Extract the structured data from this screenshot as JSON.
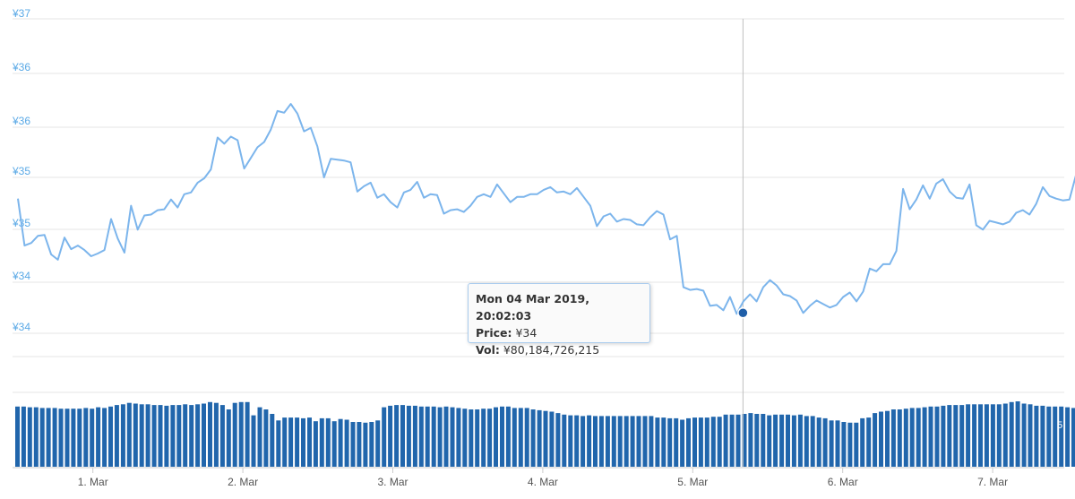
{
  "chart_data": {
    "type": "line",
    "y_tick_labels": [
      "¥37",
      "¥36",
      "¥36",
      "¥35",
      "¥35",
      "¥34",
      "¥34"
    ],
    "x_tick_labels": [
      "1. Mar",
      "2. Mar",
      "3. Mar",
      "4. Mar",
      "5. Mar",
      "6. Mar",
      "7. Mar"
    ],
    "x_range_days": [
      0.0,
      7.5
    ],
    "price_range": [
      33.5,
      37
    ],
    "grid": true,
    "series": [
      {
        "values": [
          35.02,
          34.49,
          34.52,
          34.6,
          34.61,
          34.39,
          34.33,
          34.58,
          34.45,
          34.49,
          34.44,
          34.37,
          34.4,
          34.44,
          34.79,
          34.57,
          34.41,
          34.94,
          34.67,
          34.83,
          34.84,
          34.89,
          34.9,
          35.01,
          34.92,
          35.07,
          35.09,
          35.2,
          35.25,
          35.35,
          35.71,
          35.64,
          35.72,
          35.68,
          35.36,
          35.48,
          35.6,
          35.66,
          35.8,
          36.01,
          35.99,
          36.09,
          35.98,
          35.78,
          35.82,
          35.61,
          35.26,
          35.47,
          35.46,
          35.45,
          35.43,
          35.1,
          35.16,
          35.2,
          35.03,
          35.07,
          34.98,
          34.92,
          35.09,
          35.12,
          35.21,
          35.03,
          35.07,
          35.06,
          34.85,
          34.89,
          34.9,
          34.87,
          34.94,
          35.04,
          35.07,
          35.04,
          35.18,
          35.08,
          34.98,
          35.04,
          35.04,
          35.07,
          35.07,
          35.12,
          35.15,
          35.09,
          35.1,
          35.07,
          35.14,
          35.04,
          34.94,
          34.71,
          34.82,
          34.85,
          34.76,
          34.79,
          34.78,
          34.73,
          34.72,
          34.81,
          34.88,
          34.84,
          34.56,
          34.6,
          34.02,
          33.99,
          34.0,
          33.98,
          33.81,
          33.82,
          33.76,
          33.91,
          33.72,
          33.86,
          33.94,
          33.86,
          34.02,
          34.1,
          34.04,
          33.94,
          33.92,
          33.87,
          33.73,
          33.81,
          33.87,
          33.83,
          33.79,
          33.82,
          33.91,
          33.96,
          33.86,
          33.97,
          34.23,
          34.2,
          34.28,
          34.28,
          34.43,
          35.13,
          34.9,
          35.01,
          35.17,
          35.02,
          35.19,
          35.24,
          35.1,
          35.03,
          35.02,
          35.18,
          34.72,
          34.67,
          34.77,
          34.75,
          34.73,
          34.76,
          34.86,
          34.89,
          34.84,
          34.96,
          35.15,
          35.05,
          35.02,
          35.0,
          35.01,
          35.29,
          35.65,
          35.5,
          35.29,
          35.22,
          35.12,
          35.09,
          35.15,
          35.1,
          35.24,
          35.45
        ]
      }
    ],
    "volume_values_billions": [
      82,
      82,
      81,
      81,
      80,
      80,
      80,
      79,
      79,
      79,
      79,
      80,
      79,
      81,
      80,
      82,
      84,
      85,
      87,
      86,
      85,
      85,
      84,
      84,
      83,
      84,
      84,
      85,
      84,
      85,
      86,
      88,
      87,
      84,
      78,
      87,
      88,
      88,
      70,
      81,
      78,
      72,
      63,
      67,
      67,
      67,
      66,
      67,
      62,
      66,
      66,
      62,
      65,
      64,
      61,
      61,
      60,
      61,
      63,
      81,
      83,
      84,
      84,
      83,
      83,
      82,
      82,
      82,
      81,
      82,
      81,
      80,
      79,
      78,
      78,
      79,
      79,
      81,
      82,
      82,
      80,
      80,
      80,
      78,
      77,
      76,
      75,
      73,
      71,
      70,
      70,
      69,
      70,
      69,
      69,
      69,
      69,
      69,
      69,
      69,
      69,
      69,
      69,
      67,
      67,
      66,
      66,
      64,
      66,
      67,
      67,
      67,
      68,
      68,
      71,
      71,
      71,
      72,
      73,
      72,
      72,
      70,
      71,
      71,
      71,
      70,
      71,
      69,
      69,
      67,
      66,
      63,
      63,
      61,
      60,
      60,
      66,
      67,
      73,
      75,
      76,
      78,
      78,
      79,
      80,
      80,
      81,
      82,
      82,
      83,
      84,
      84,
      84,
      85,
      85,
      85,
      85,
      85,
      85,
      86,
      88,
      89,
      86,
      85,
      83,
      83,
      82,
      82,
      82,
      81,
      80,
      80,
      80,
      80,
      79,
      79,
      79,
      79,
      80
    ],
    "vol_axis_label": "5",
    "tooltip": {
      "title": "Mon 04 Mar 2019, 20:02:03",
      "price_label": "Price:",
      "price_value": "¥34",
      "vol_label": "Vol:",
      "vol_value": "¥80,184,726,215",
      "x_day": 4.835,
      "price": 33.73
    },
    "colors": {
      "line": "#7cb5ec",
      "volume": "#2166ac",
      "marker": "#1f5ea8",
      "grid": "#e6e6e6",
      "y_labels": "#5aa9e6"
    }
  }
}
